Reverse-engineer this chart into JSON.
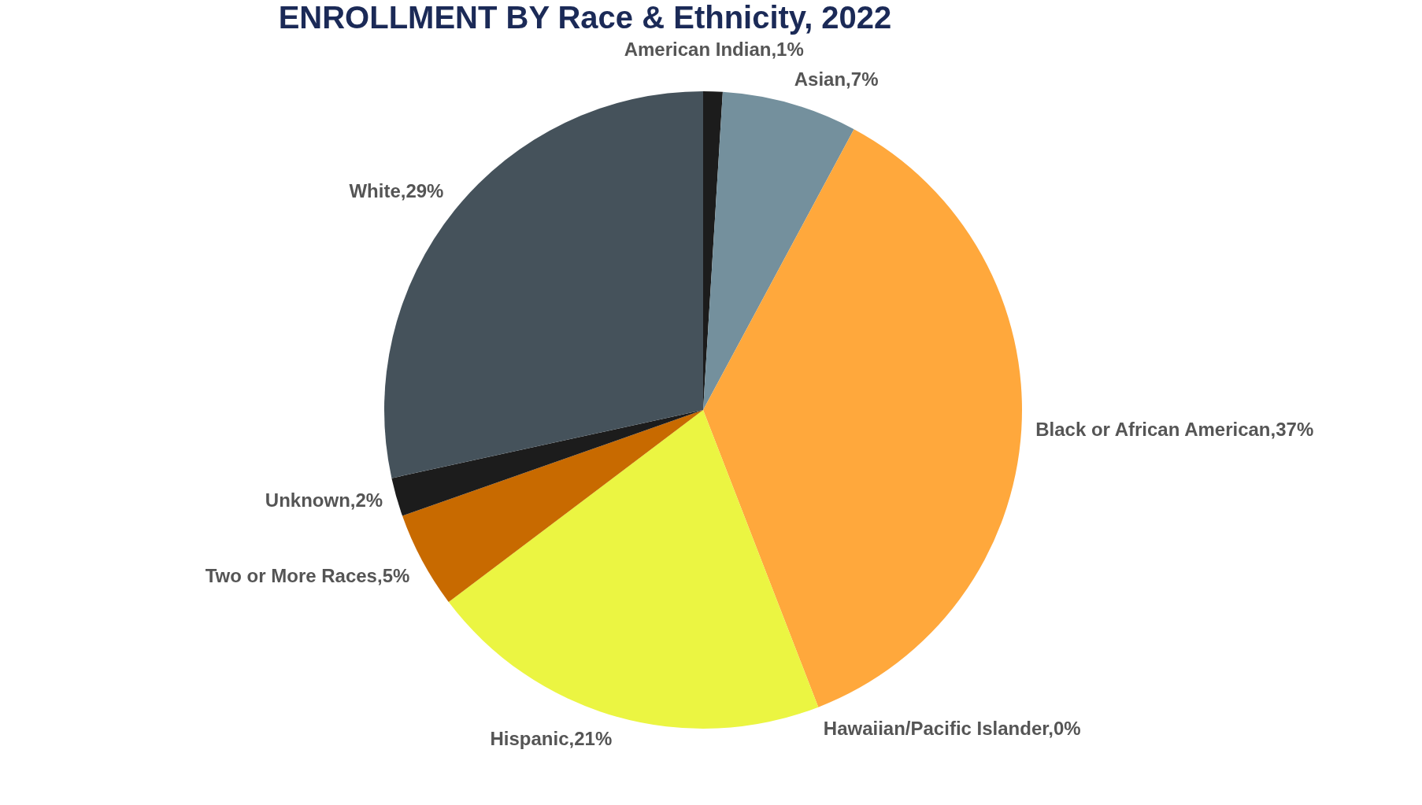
{
  "chart_data": {
    "type": "pie",
    "title": "ENROLLMENT BY Race & Ethnicity, 2022",
    "categories": [
      "American Indian",
      "Asian",
      "Black or African American",
      "Hawaiian/Pacific Islander",
      "Hispanic",
      "Two or More Races",
      "Unknown",
      "White"
    ],
    "values": [
      1,
      7,
      37,
      0,
      21,
      5,
      2,
      29
    ],
    "value_labels": [
      ",1%",
      ",7%",
      ",37%",
      ",0%",
      ",21%",
      ",5%",
      ",2%",
      ",29%"
    ],
    "colors": [
      "#1c1c1c",
      "#74909d",
      "#ffa83c",
      "#4a8a8a",
      "#ebf542",
      "#c86a00",
      "#1c1c1c",
      "#45525b"
    ]
  }
}
